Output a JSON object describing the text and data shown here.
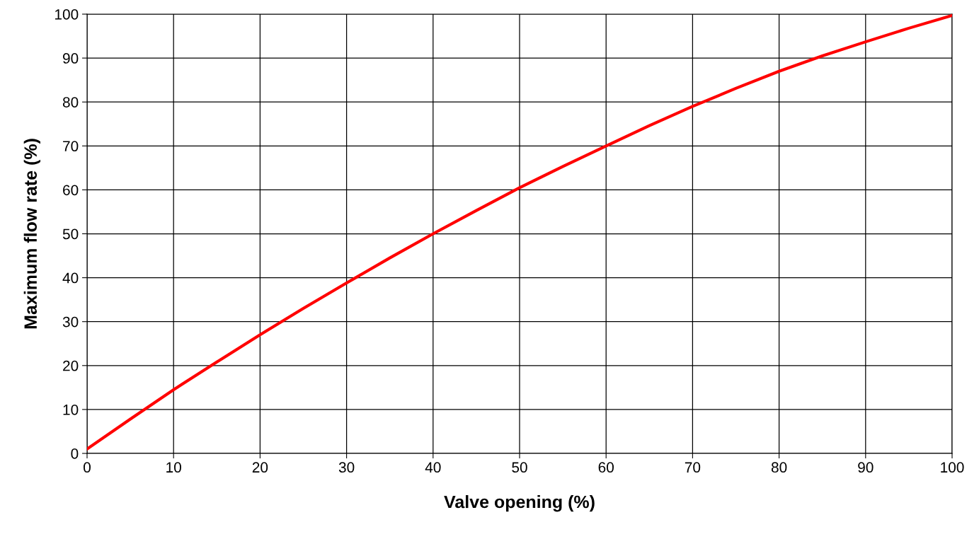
{
  "chart_data": {
    "type": "line",
    "xlabel": "Valve opening (%)",
    "ylabel": "Maximum flow rate (%)",
    "x": [
      0,
      5,
      10,
      15,
      20,
      25,
      30,
      35,
      40,
      45,
      50,
      55,
      60,
      65,
      70,
      75,
      80,
      85,
      90,
      95,
      100
    ],
    "series": [
      {
        "color": "#ff0000",
        "values": [
          1,
          7.8,
          14.5,
          20.8,
          27,
          33,
          38.8,
          44.5,
          50,
          55.3,
          60.5,
          65.3,
          70,
          74.6,
          79,
          83.1,
          87,
          90.5,
          93.7,
          96.8,
          99.7
        ]
      }
    ],
    "xlim": [
      0,
      100
    ],
    "ylim": [
      0,
      100
    ],
    "xticks": [
      0,
      10,
      20,
      30,
      40,
      50,
      60,
      70,
      80,
      90,
      100
    ],
    "yticks": [
      0,
      10,
      20,
      30,
      40,
      50,
      60,
      70,
      80,
      90,
      100
    ],
    "grid": true,
    "marker": "none",
    "line_style": "solid"
  }
}
